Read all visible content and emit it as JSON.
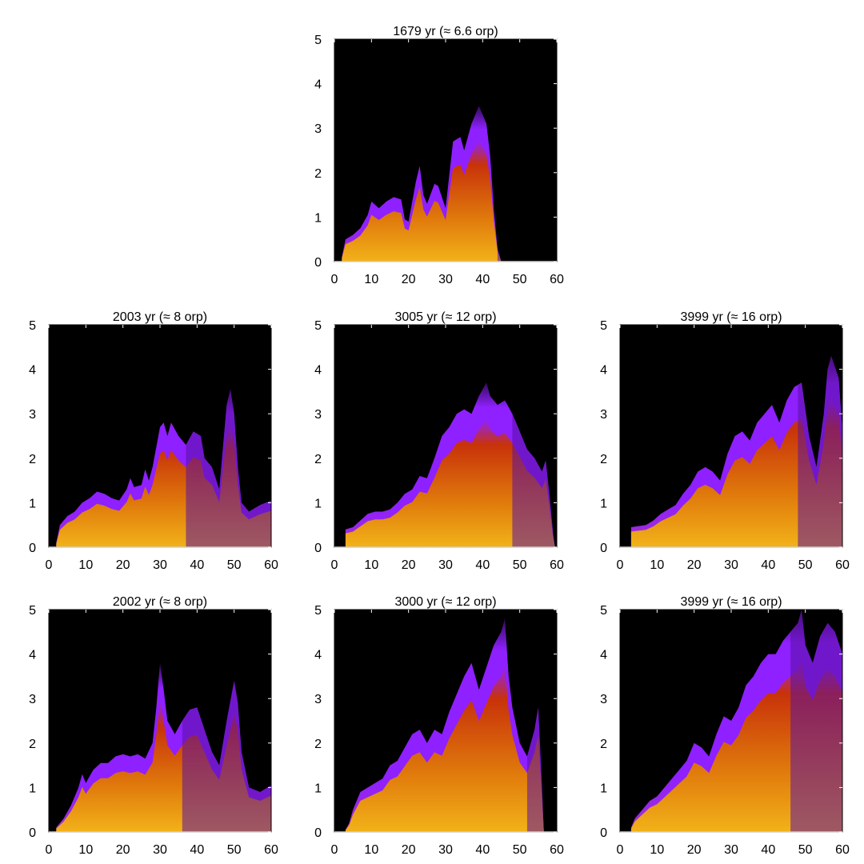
{
  "chart_data": [
    {
      "type": "heatmap",
      "title": "1679 yr (≈ 6.6 orp)",
      "xlim": [
        0,
        60
      ],
      "ylim": [
        0,
        5
      ],
      "xticks": [
        0,
        10,
        20,
        30,
        40,
        50,
        60
      ],
      "yticks": [
        0,
        1,
        2,
        3,
        4,
        5
      ],
      "grid": false,
      "start_x": 2,
      "profile": [
        [
          2,
          0.1
        ],
        [
          3,
          0.5
        ],
        [
          5,
          0.6
        ],
        [
          7,
          0.75
        ],
        [
          9,
          1.05
        ],
        [
          10,
          1.35
        ],
        [
          12,
          1.2
        ],
        [
          14,
          1.35
        ],
        [
          16,
          1.45
        ],
        [
          18,
          1.4
        ],
        [
          19,
          0.95
        ],
        [
          20,
          0.9
        ],
        [
          22,
          1.8
        ],
        [
          23,
          2.15
        ],
        [
          24,
          1.5
        ],
        [
          25,
          1.3
        ],
        [
          27,
          1.75
        ],
        [
          28,
          1.7
        ],
        [
          30,
          1.2
        ],
        [
          32,
          2.7
        ],
        [
          34,
          2.8
        ],
        [
          35,
          2.5
        ],
        [
          37,
          3.1
        ],
        [
          39,
          3.5
        ],
        [
          41,
          3.1
        ],
        [
          42,
          2.4
        ],
        [
          43,
          1.2
        ],
        [
          44,
          0.3
        ],
        [
          45,
          0
        ]
      ],
      "purple_from": 44,
      "purple_to": 45
    },
    {
      "type": "heatmap",
      "title": "2003 yr (≈ 8 orp)",
      "xlim": [
        0,
        60
      ],
      "ylim": [
        0,
        5
      ],
      "xticks": [
        0,
        10,
        20,
        30,
        40,
        50,
        60
      ],
      "yticks": [
        0,
        1,
        2,
        3,
        4,
        5
      ],
      "grid": false,
      "start_x": 2,
      "profile": [
        [
          2,
          0.1
        ],
        [
          3,
          0.5
        ],
        [
          5,
          0.7
        ],
        [
          7,
          0.8
        ],
        [
          9,
          1.0
        ],
        [
          11,
          1.1
        ],
        [
          13,
          1.25
        ],
        [
          15,
          1.2
        ],
        [
          17,
          1.1
        ],
        [
          19,
          1.05
        ],
        [
          21,
          1.3
        ],
        [
          22,
          1.55
        ],
        [
          23,
          1.35
        ],
        [
          25,
          1.4
        ],
        [
          26,
          1.75
        ],
        [
          27,
          1.5
        ],
        [
          28,
          1.8
        ],
        [
          30,
          2.7
        ],
        [
          31,
          2.8
        ],
        [
          32,
          2.5
        ],
        [
          33,
          2.8
        ],
        [
          35,
          2.5
        ],
        [
          37,
          2.3
        ],
        [
          39,
          2.6
        ],
        [
          41,
          2.5
        ],
        [
          42,
          2.0
        ],
        [
          44,
          1.8
        ],
        [
          46,
          1.3
        ],
        [
          48,
          3.2
        ],
        [
          49,
          3.55
        ],
        [
          50,
          3.0
        ],
        [
          51,
          1.8
        ],
        [
          52,
          1.0
        ],
        [
          54,
          0.8
        ],
        [
          57,
          0.95
        ],
        [
          60,
          1.05
        ]
      ],
      "purple_from": 37,
      "purple_to": 60
    },
    {
      "type": "heatmap",
      "title": "3005 yr (≈ 12 orp)",
      "xlim": [
        0,
        60
      ],
      "ylim": [
        0,
        5
      ],
      "xticks": [
        0,
        10,
        20,
        30,
        40,
        50,
        60
      ],
      "yticks": [
        0,
        1,
        2,
        3,
        4,
        5
      ],
      "grid": false,
      "start_x": 3,
      "profile": [
        [
          3,
          0.4
        ],
        [
          5,
          0.45
        ],
        [
          7,
          0.6
        ],
        [
          9,
          0.75
        ],
        [
          11,
          0.8
        ],
        [
          13,
          0.8
        ],
        [
          15,
          0.85
        ],
        [
          17,
          1.0
        ],
        [
          19,
          1.2
        ],
        [
          21,
          1.3
        ],
        [
          23,
          1.6
        ],
        [
          25,
          1.55
        ],
        [
          27,
          2.0
        ],
        [
          29,
          2.5
        ],
        [
          31,
          2.7
        ],
        [
          33,
          3.0
        ],
        [
          35,
          3.1
        ],
        [
          37,
          3.0
        ],
        [
          39,
          3.4
        ],
        [
          41,
          3.7
        ],
        [
          42,
          3.4
        ],
        [
          44,
          3.2
        ],
        [
          46,
          3.3
        ],
        [
          48,
          3.0
        ],
        [
          50,
          2.6
        ],
        [
          52,
          2.2
        ],
        [
          54,
          2.0
        ],
        [
          56,
          1.7
        ],
        [
          57,
          1.95
        ],
        [
          58,
          1.2
        ],
        [
          59,
          0.3
        ],
        [
          59.5,
          0
        ]
      ],
      "purple_from": 48,
      "purple_to": 60
    },
    {
      "type": "heatmap",
      "title": "3999 yr (≈ 16 orp)",
      "xlim": [
        0,
        60
      ],
      "ylim": [
        0,
        5
      ],
      "xticks": [
        0,
        10,
        20,
        30,
        40,
        50,
        60
      ],
      "yticks": [
        0,
        1,
        2,
        3,
        4,
        5
      ],
      "grid": false,
      "start_x": 3,
      "profile": [
        [
          3,
          0.45
        ],
        [
          7,
          0.5
        ],
        [
          9,
          0.6
        ],
        [
          11,
          0.75
        ],
        [
          13,
          0.85
        ],
        [
          15,
          0.95
        ],
        [
          17,
          1.2
        ],
        [
          19,
          1.4
        ],
        [
          21,
          1.7
        ],
        [
          23,
          1.8
        ],
        [
          25,
          1.7
        ],
        [
          27,
          1.5
        ],
        [
          29,
          2.1
        ],
        [
          31,
          2.5
        ],
        [
          33,
          2.6
        ],
        [
          35,
          2.4
        ],
        [
          37,
          2.8
        ],
        [
          39,
          3.0
        ],
        [
          41,
          3.2
        ],
        [
          43,
          2.8
        ],
        [
          45,
          3.3
        ],
        [
          47,
          3.6
        ],
        [
          49,
          3.7
        ],
        [
          51,
          2.5
        ],
        [
          53,
          1.8
        ],
        [
          55,
          3.0
        ],
        [
          56,
          4.0
        ],
        [
          57,
          4.3
        ],
        [
          59,
          3.8
        ],
        [
          60,
          2.6
        ]
      ],
      "purple_from": 48,
      "purple_to": 60
    },
    {
      "type": "heatmap",
      "title": "2002 yr (≈ 8 orp)",
      "xlim": [
        0,
        60
      ],
      "ylim": [
        0,
        5
      ],
      "xticks": [
        0,
        10,
        20,
        30,
        40,
        50,
        60
      ],
      "yticks": [
        0,
        1,
        2,
        3,
        4,
        5
      ],
      "grid": false,
      "start_x": 2,
      "profile": [
        [
          2,
          0.1
        ],
        [
          4,
          0.3
        ],
        [
          6,
          0.6
        ],
        [
          8,
          1.0
        ],
        [
          9,
          1.3
        ],
        [
          10,
          1.1
        ],
        [
          12,
          1.4
        ],
        [
          14,
          1.55
        ],
        [
          16,
          1.55
        ],
        [
          18,
          1.7
        ],
        [
          20,
          1.75
        ],
        [
          22,
          1.7
        ],
        [
          24,
          1.75
        ],
        [
          26,
          1.65
        ],
        [
          28,
          2.0
        ],
        [
          29,
          2.8
        ],
        [
          30,
          3.8
        ],
        [
          31,
          3.2
        ],
        [
          32,
          2.5
        ],
        [
          34,
          2.2
        ],
        [
          36,
          2.5
        ],
        [
          38,
          2.75
        ],
        [
          40,
          2.8
        ],
        [
          42,
          2.3
        ],
        [
          44,
          1.8
        ],
        [
          46,
          1.5
        ],
        [
          48,
          2.5
        ],
        [
          50,
          3.4
        ],
        [
          51,
          2.9
        ],
        [
          52,
          1.8
        ],
        [
          54,
          1.0
        ],
        [
          57,
          0.9
        ],
        [
          60,
          1.05
        ]
      ],
      "purple_from": 36,
      "purple_to": 60
    },
    {
      "type": "heatmap",
      "title": "3000 yr (≈ 12 orp)",
      "xlim": [
        0,
        60
      ],
      "ylim": [
        0,
        5
      ],
      "xticks": [
        0,
        10,
        20,
        30,
        40,
        50,
        60
      ],
      "yticks": [
        0,
        1,
        2,
        3,
        4,
        5
      ],
      "grid": false,
      "start_x": 3,
      "profile": [
        [
          3,
          0.05
        ],
        [
          4,
          0.2
        ],
        [
          5,
          0.5
        ],
        [
          7,
          0.9
        ],
        [
          9,
          1.0
        ],
        [
          11,
          1.1
        ],
        [
          13,
          1.2
        ],
        [
          15,
          1.5
        ],
        [
          17,
          1.6
        ],
        [
          19,
          1.9
        ],
        [
          21,
          2.2
        ],
        [
          23,
          2.3
        ],
        [
          25,
          2.0
        ],
        [
          27,
          2.3
        ],
        [
          29,
          2.2
        ],
        [
          31,
          2.7
        ],
        [
          33,
          3.1
        ],
        [
          35,
          3.5
        ],
        [
          37,
          3.8
        ],
        [
          39,
          3.2
        ],
        [
          41,
          3.7
        ],
        [
          43,
          4.2
        ],
        [
          45,
          4.5
        ],
        [
          46,
          4.8
        ],
        [
          47,
          3.5
        ],
        [
          48,
          2.8
        ],
        [
          50,
          2.0
        ],
        [
          52,
          1.7
        ],
        [
          54,
          2.3
        ],
        [
          55,
          2.8
        ],
        [
          56,
          1.0
        ],
        [
          56.5,
          0
        ]
      ],
      "purple_from": 52,
      "purple_to": 57
    },
    {
      "type": "heatmap",
      "title": "3999 yr (≈ 16 orp)",
      "xlim": [
        0,
        60
      ],
      "ylim": [
        0,
        5
      ],
      "xticks": [
        0,
        10,
        20,
        30,
        40,
        50,
        60
      ],
      "yticks": [
        0,
        1,
        2,
        3,
        4,
        5
      ],
      "grid": false,
      "start_x": 3,
      "profile": [
        [
          3,
          0.1
        ],
        [
          4,
          0.3
        ],
        [
          6,
          0.5
        ],
        [
          8,
          0.7
        ],
        [
          10,
          0.8
        ],
        [
          12,
          1.0
        ],
        [
          14,
          1.2
        ],
        [
          16,
          1.4
        ],
        [
          18,
          1.6
        ],
        [
          20,
          2.0
        ],
        [
          22,
          1.9
        ],
        [
          24,
          1.7
        ],
        [
          26,
          2.2
        ],
        [
          28,
          2.6
        ],
        [
          30,
          2.5
        ],
        [
          32,
          2.8
        ],
        [
          34,
          3.3
        ],
        [
          36,
          3.5
        ],
        [
          38,
          3.8
        ],
        [
          40,
          4.0
        ],
        [
          42,
          4.0
        ],
        [
          44,
          4.3
        ],
        [
          46,
          4.5
        ],
        [
          48,
          4.7
        ],
        [
          49,
          5.0
        ],
        [
          50,
          4.2
        ],
        [
          52,
          3.8
        ],
        [
          54,
          4.4
        ],
        [
          56,
          4.7
        ],
        [
          58,
          4.5
        ],
        [
          60,
          4.0
        ]
      ],
      "purple_from": 46,
      "purple_to": 60
    }
  ],
  "colors": {
    "background": "#000000",
    "hot_yellow": "#f2b219",
    "orange": "#e07a0c",
    "red": "#c8320a",
    "magenta": "#a030d0",
    "purple": "#8f20ff",
    "dark_purple": "#5a10a0"
  }
}
